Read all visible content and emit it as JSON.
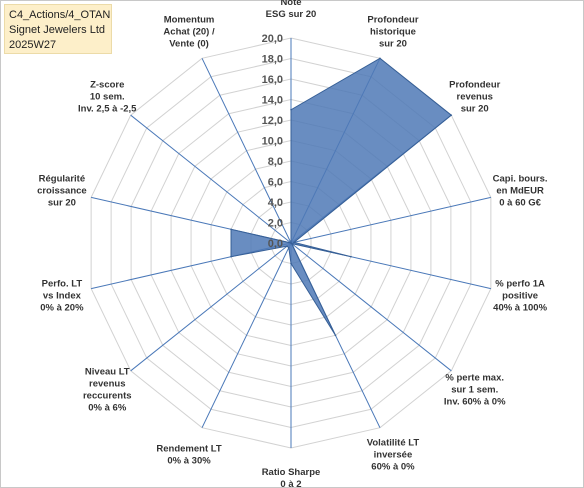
{
  "header": {
    "line1": "C4_Actions/4_OTAN",
    "line2": "Signet Jewelers Ltd",
    "line3": "2025W27"
  },
  "chart_data": {
    "type": "radar",
    "rmin": 0,
    "rmax": 20,
    "tick_step": 2,
    "ticks": [
      "0,0",
      "2,0",
      "4,0",
      "6,0",
      "8,0",
      "10,0",
      "12,0",
      "14,0",
      "16,0",
      "18,0",
      "20,0"
    ],
    "grid": true,
    "legend": "none",
    "colors": {
      "fill": "#4f79b6",
      "stroke": "#365f96",
      "grid": "#d2d2d2",
      "spoke": "#4a78b8"
    },
    "axes": [
      {
        "lines": [
          "Note",
          "ESG sur 20"
        ]
      },
      {
        "lines": [
          "Profondeur",
          "historique",
          "sur 20"
        ]
      },
      {
        "lines": [
          "Profondeur",
          "revenus",
          "sur 20"
        ]
      },
      {
        "lines": [
          "Capi. bours.",
          "en MdEUR",
          "0 à 60 G€"
        ]
      },
      {
        "lines": [
          "% perfo 1A",
          "positive",
          "40% à 100%"
        ]
      },
      {
        "lines": [
          "% perte max.",
          "sur 1 sem.",
          "Inv. 60% à 0%"
        ]
      },
      {
        "lines": [
          "Volatilité LT",
          "inversée",
          "60% à 0%"
        ]
      },
      {
        "lines": [
          "Ratio Sharpe",
          "0 à 2"
        ]
      },
      {
        "lines": [
          "Rendement LT",
          "0% à 30%"
        ]
      },
      {
        "lines": [
          "Niveau LT",
          "revenus",
          "reccurents",
          "0% à 6%"
        ]
      },
      {
        "lines": [
          "Perfo. LT",
          "vs Index",
          "0% à 20%"
        ]
      },
      {
        "lines": [
          "Régularité",
          "croissance",
          "sur 20"
        ]
      },
      {
        "lines": [
          "Z-score",
          "10 sem.",
          "Inv. 2,5 à -2,5"
        ]
      },
      {
        "lines": [
          "Momentum",
          "Achat (20) /",
          "Vente (0)"
        ]
      }
    ],
    "values": [
      13,
      20,
      20,
      0.3,
      6,
      0.1,
      10,
      2,
      0.5,
      0.5,
      6,
      6,
      0,
      0
    ]
  }
}
